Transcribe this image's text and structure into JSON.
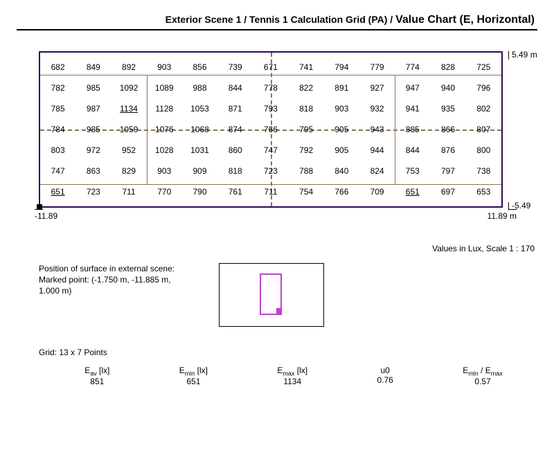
{
  "title": {
    "breadcrumb": "Exterior Scene 1 / Tennis 1 Calculation Grid (PA) / ",
    "page": "Value Chart (E, Horizontal)"
  },
  "grid": {
    "rows": [
      [
        "682",
        "849",
        "892",
        "903",
        "856",
        "739",
        "671",
        "741",
        "794",
        "779",
        "774",
        "828",
        "725"
      ],
      [
        "782",
        "985",
        "1092",
        "1089",
        "988",
        "844",
        "778",
        "822",
        "891",
        "927",
        "947",
        "940",
        "796"
      ],
      [
        "785",
        "987",
        "1134",
        "1128",
        "1053",
        "871",
        "793",
        "818",
        "903",
        "932",
        "941",
        "935",
        "802"
      ],
      [
        "784",
        "985",
        "1059",
        "1076",
        "1068",
        "874",
        "766",
        "795",
        "905",
        "943",
        "885",
        "866",
        "807"
      ],
      [
        "803",
        "972",
        "952",
        "1028",
        "1031",
        "860",
        "747",
        "792",
        "905",
        "944",
        "844",
        "876",
        "800"
      ],
      [
        "747",
        "863",
        "829",
        "903",
        "909",
        "818",
        "723",
        "788",
        "840",
        "824",
        "753",
        "797",
        "738"
      ],
      [
        "651",
        "723",
        "711",
        "770",
        "790",
        "761",
        "711",
        "754",
        "766",
        "709",
        "651",
        "697",
        "653"
      ]
    ],
    "cols": 13,
    "rows_count": 7,
    "max_value": "1134",
    "min_value": "651",
    "colors": {
      "border": "#2e0854",
      "gridline": "#8b7355"
    }
  },
  "axes": {
    "y_top": "5.49 m",
    "y_bot": "-5.49",
    "x_left": "-11.89",
    "x_right": "11.89 m"
  },
  "scale_note": "Values in Lux, Scale 1 : 170",
  "position": {
    "heading": "Position of surface in external scene:",
    "line2": "Marked point: (-1.750 m, -11.885 m,",
    "line3": "1.000 m)"
  },
  "grid_points": "Grid: 13 x 7 Points",
  "stats": {
    "eav_label": "E",
    "eav_sub": "av",
    "eav_unit": " [lx]",
    "eav_val": "851",
    "emin_label": "E",
    "emin_sub": "min",
    "emin_unit": " [lx]",
    "emin_val": "651",
    "emax_label": "E",
    "emax_sub": "max",
    "emax_unit": " [lx]",
    "emax_val": "1134",
    "u0_label": "u0",
    "u0_val": "0.76",
    "ratio_label_a": "E",
    "ratio_sub_a": "min",
    "ratio_sep": " / ",
    "ratio_label_b": "E",
    "ratio_sub_b": "max",
    "ratio_val": "0.57"
  }
}
